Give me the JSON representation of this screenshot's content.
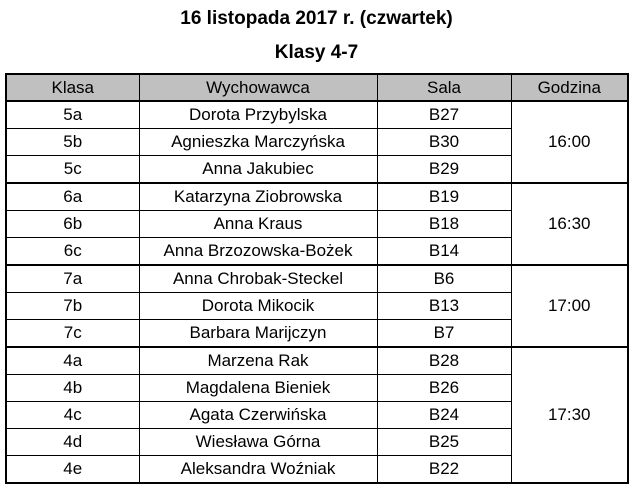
{
  "header": {
    "date_line": "16 listopada 2017 r. (czwartek)",
    "class_line": "Klasy 4-7"
  },
  "table": {
    "columns": [
      "Klasa",
      "Wychowawca",
      "Sala",
      "Godzina"
    ],
    "groups": [
      {
        "hour": "16:00",
        "rows": [
          {
            "klasa": "5a",
            "wychowawca": "Dorota Przybylska",
            "sala": "B27"
          },
          {
            "klasa": "5b",
            "wychowawca": "Agnieszka Marczyńska",
            "sala": "B30"
          },
          {
            "klasa": "5c",
            "wychowawca": "Anna Jakubiec",
            "sala": "B29"
          }
        ]
      },
      {
        "hour": "16:30",
        "rows": [
          {
            "klasa": "6a",
            "wychowawca": "Katarzyna Ziobrowska",
            "sala": "B19"
          },
          {
            "klasa": "6b",
            "wychowawca": "Anna Kraus",
            "sala": "B18"
          },
          {
            "klasa": "6c",
            "wychowawca": "Anna Brzozowska-Bożek",
            "sala": "B14"
          }
        ]
      },
      {
        "hour": "17:00",
        "rows": [
          {
            "klasa": "7a",
            "wychowawca": "Anna Chrobak-Steckel",
            "sala": "B6"
          },
          {
            "klasa": "7b",
            "wychowawca": "Dorota Mikocik",
            "sala": "B13"
          },
          {
            "klasa": "7c",
            "wychowawca": "Barbara Marijczyn",
            "sala": "B7"
          }
        ]
      },
      {
        "hour": "17:30",
        "rows": [
          {
            "klasa": "4a",
            "wychowawca": "Marzena Rak",
            "sala": "B28"
          },
          {
            "klasa": "4b",
            "wychowawca": "Magdalena Bieniek",
            "sala": "B26"
          },
          {
            "klasa": "4c",
            "wychowawca": "Agata Czerwińska",
            "sala": "B24"
          },
          {
            "klasa": "4d",
            "wychowawca": "Wiesława Górna",
            "sala": "B25"
          },
          {
            "klasa": "4e",
            "wychowawca": "Aleksandra Woźniak",
            "sala": "B22"
          }
        ]
      }
    ]
  },
  "colors": {
    "header_bg": "#c0c0c0",
    "border": "#000000"
  }
}
